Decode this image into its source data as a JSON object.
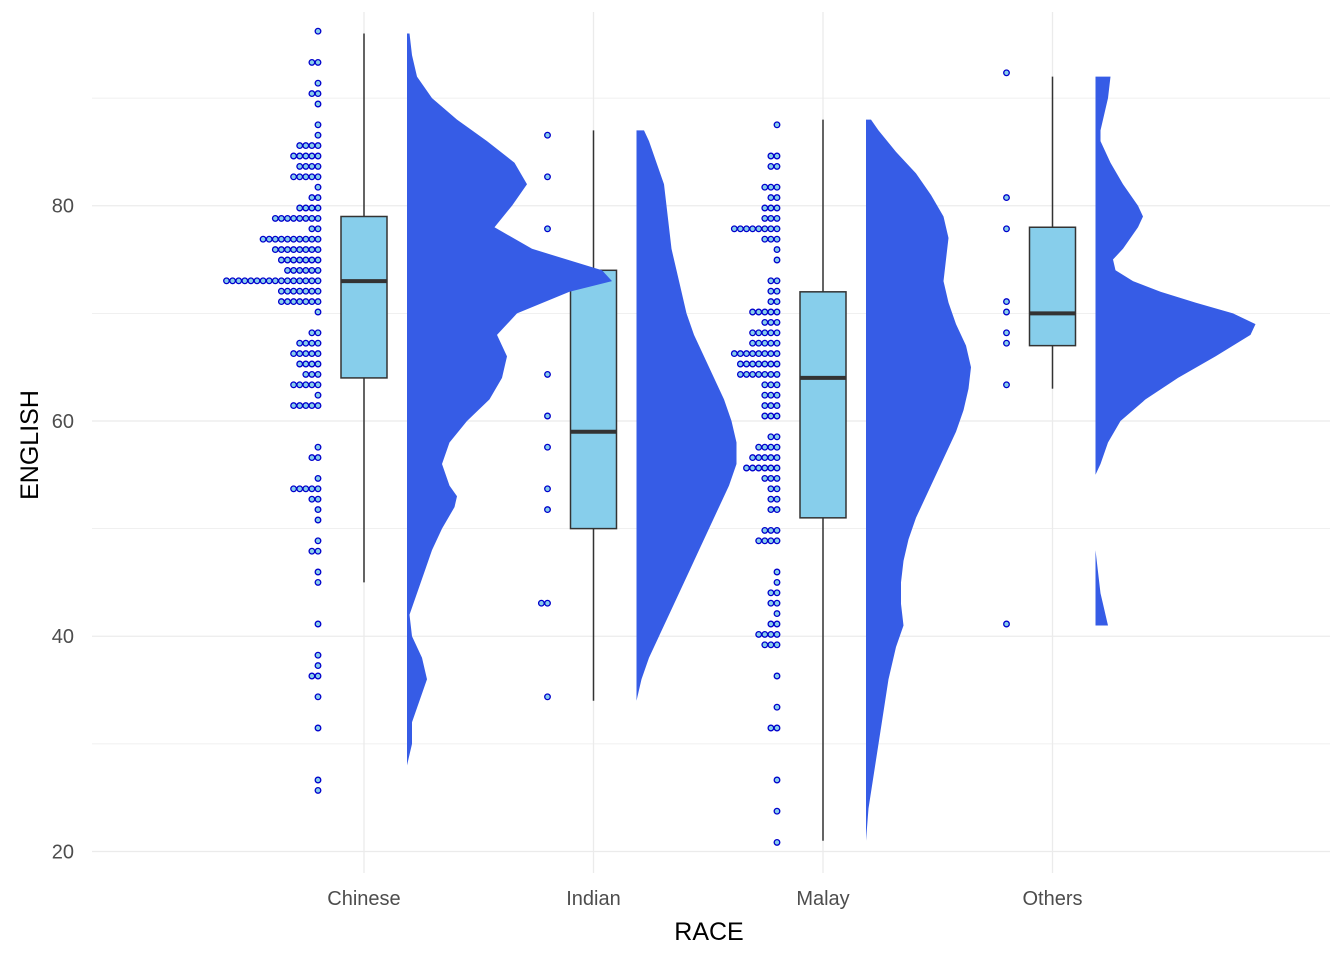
{
  "chart_data": {
    "type": "raincloud",
    "xlabel": "RACE",
    "ylabel": "ENGLISH",
    "ylim": [
      18,
      98
    ],
    "yticks": [
      20,
      40,
      60,
      80
    ],
    "grid": true,
    "colors": {
      "box_fill": "#87CEEB",
      "box_stroke": "#333333",
      "density_fill": "#365CE6",
      "dot_stroke": "#0000CC",
      "dot_fill": "#87CEEB",
      "grid": "#EBEBEB"
    },
    "categories": [
      {
        "name": "Chinese",
        "box": {
          "min": 45,
          "q1": 64,
          "median": 73,
          "q3": 79,
          "max": 96
        },
        "density_range": [
          26,
          96
        ],
        "density": [
          [
            26,
            0.0
          ],
          [
            28,
            0.0
          ],
          [
            30,
            0.02
          ],
          [
            32,
            0.02
          ],
          [
            34,
            0.05
          ],
          [
            36,
            0.08
          ],
          [
            38,
            0.06
          ],
          [
            40,
            0.02
          ],
          [
            42,
            0.01
          ],
          [
            44,
            0.04
          ],
          [
            46,
            0.07
          ],
          [
            48,
            0.1
          ],
          [
            50,
            0.14
          ],
          [
            52,
            0.19
          ],
          [
            53,
            0.2
          ],
          [
            54,
            0.17
          ],
          [
            56,
            0.14
          ],
          [
            58,
            0.17
          ],
          [
            60,
            0.24
          ],
          [
            62,
            0.33
          ],
          [
            64,
            0.38
          ],
          [
            66,
            0.4
          ],
          [
            68,
            0.36
          ],
          [
            70,
            0.44
          ],
          [
            72,
            0.65
          ],
          [
            73,
            0.82
          ],
          [
            74,
            0.78
          ],
          [
            76,
            0.5
          ],
          [
            78,
            0.35
          ],
          [
            80,
            0.42
          ],
          [
            82,
            0.48
          ],
          [
            84,
            0.43
          ],
          [
            86,
            0.32
          ],
          [
            88,
            0.2
          ],
          [
            90,
            0.1
          ],
          [
            92,
            0.04
          ],
          [
            94,
            0.02
          ],
          [
            96,
            0.01
          ]
        ],
        "dots": [
          96,
          93,
          93,
          91,
          90,
          90,
          89,
          88,
          87,
          86,
          86,
          86,
          86,
          85,
          85,
          85,
          85,
          85,
          84,
          84,
          84,
          84,
          83,
          83,
          83,
          83,
          83,
          82,
          81,
          81,
          80,
          80,
          80,
          80,
          79,
          79,
          79,
          79,
          79,
          79,
          79,
          79,
          78,
          78,
          77,
          77,
          77,
          77,
          77,
          77,
          77,
          77,
          77,
          77,
          76,
          76,
          76,
          76,
          76,
          76,
          76,
          76,
          75,
          75,
          75,
          75,
          75,
          75,
          75,
          74,
          74,
          74,
          74,
          74,
          74,
          73,
          73,
          73,
          73,
          73,
          73,
          73,
          73,
          73,
          73,
          73,
          73,
          73,
          73,
          73,
          73,
          72,
          72,
          72,
          72,
          72,
          72,
          72,
          71,
          71,
          71,
          71,
          71,
          71,
          71,
          70,
          68,
          68,
          67,
          67,
          67,
          67,
          66,
          66,
          66,
          66,
          66,
          65,
          65,
          65,
          65,
          64,
          64,
          64,
          63,
          63,
          63,
          63,
          63,
          62,
          61,
          61,
          61,
          61,
          61,
          58,
          57,
          57,
          55,
          54,
          54,
          54,
          54,
          54,
          53,
          53,
          52,
          51,
          49,
          48,
          48,
          46,
          45,
          41,
          38,
          37,
          36,
          36,
          34,
          31,
          27,
          26
        ]
      },
      {
        "name": "Indian",
        "box": {
          "min": 34,
          "q1": 50,
          "median": 59,
          "q3": 74,
          "max": 87
        },
        "density_range": [
          34,
          87
        ],
        "density": [
          [
            34,
            0.0
          ],
          [
            36,
            0.02
          ],
          [
            38,
            0.05
          ],
          [
            40,
            0.09
          ],
          [
            42,
            0.13
          ],
          [
            44,
            0.17
          ],
          [
            46,
            0.21
          ],
          [
            48,
            0.25
          ],
          [
            50,
            0.29
          ],
          [
            52,
            0.33
          ],
          [
            54,
            0.37
          ],
          [
            56,
            0.4
          ],
          [
            58,
            0.4
          ],
          [
            60,
            0.38
          ],
          [
            62,
            0.35
          ],
          [
            64,
            0.31
          ],
          [
            66,
            0.27
          ],
          [
            68,
            0.23
          ],
          [
            70,
            0.2
          ],
          [
            72,
            0.18
          ],
          [
            74,
            0.16
          ],
          [
            76,
            0.14
          ],
          [
            78,
            0.13
          ],
          [
            80,
            0.12
          ],
          [
            82,
            0.11
          ],
          [
            84,
            0.08
          ],
          [
            86,
            0.05
          ],
          [
            87,
            0.03
          ]
        ],
        "dots": [
          87,
          83,
          78,
          73,
          64,
          60,
          58,
          54,
          52,
          43,
          43,
          34
        ]
      },
      {
        "name": "Malay",
        "box": {
          "min": 21,
          "q1": 51,
          "median": 64,
          "q3": 72,
          "max": 88
        },
        "density_range": [
          21,
          88
        ],
        "density": [
          [
            21,
            0.0
          ],
          [
            24,
            0.01
          ],
          [
            27,
            0.03
          ],
          [
            30,
            0.05
          ],
          [
            33,
            0.07
          ],
          [
            36,
            0.09
          ],
          [
            39,
            0.12
          ],
          [
            41,
            0.15
          ],
          [
            43,
            0.14
          ],
          [
            45,
            0.14
          ],
          [
            47,
            0.15
          ],
          [
            49,
            0.17
          ],
          [
            51,
            0.2
          ],
          [
            53,
            0.24
          ],
          [
            55,
            0.28
          ],
          [
            57,
            0.32
          ],
          [
            59,
            0.36
          ],
          [
            61,
            0.39
          ],
          [
            63,
            0.41
          ],
          [
            65,
            0.42
          ],
          [
            67,
            0.4
          ],
          [
            69,
            0.36
          ],
          [
            71,
            0.33
          ],
          [
            73,
            0.31
          ],
          [
            75,
            0.32
          ],
          [
            77,
            0.33
          ],
          [
            79,
            0.31
          ],
          [
            81,
            0.26
          ],
          [
            83,
            0.2
          ],
          [
            85,
            0.12
          ],
          [
            87,
            0.05
          ],
          [
            88,
            0.02
          ]
        ],
        "dots": [
          88,
          85,
          85,
          84,
          84,
          82,
          82,
          82,
          81,
          81,
          80,
          80,
          80,
          79,
          79,
          79,
          78,
          78,
          78,
          78,
          78,
          78,
          78,
          78,
          77,
          77,
          77,
          76,
          75,
          73,
          73,
          72,
          72,
          71,
          71,
          70,
          70,
          70,
          70,
          70,
          69,
          69,
          69,
          68,
          68,
          68,
          68,
          68,
          67,
          67,
          67,
          67,
          67,
          66,
          66,
          66,
          66,
          66,
          66,
          66,
          66,
          65,
          65,
          65,
          65,
          65,
          65,
          65,
          64,
          64,
          64,
          64,
          64,
          64,
          64,
          63,
          63,
          63,
          62,
          62,
          62,
          61,
          61,
          61,
          60,
          60,
          60,
          59,
          59,
          58,
          58,
          58,
          58,
          57,
          57,
          57,
          57,
          57,
          56,
          56,
          56,
          56,
          56,
          56,
          55,
          55,
          55,
          54,
          54,
          53,
          53,
          52,
          52,
          50,
          50,
          50,
          49,
          49,
          49,
          49,
          46,
          45,
          44,
          44,
          43,
          43,
          42,
          41,
          41,
          40,
          40,
          40,
          40,
          39,
          39,
          39,
          36,
          33,
          31,
          31,
          27,
          24,
          21
        ]
      },
      {
        "name": "Others",
        "box": {
          "min": 63,
          "q1": 67,
          "median": 70,
          "q3": 78,
          "max": 92
        },
        "density_range": [
          41,
          92
        ],
        "density": [
          [
            41,
            0.05
          ],
          [
            42,
            0.04
          ],
          [
            43,
            0.03
          ],
          [
            44,
            0.02
          ],
          [
            46,
            0.01
          ],
          [
            48,
            0.0
          ],
          [
            50,
            0.0
          ],
          [
            53,
            0.0
          ],
          [
            55,
            0.0
          ],
          [
            56,
            0.02
          ],
          [
            58,
            0.05
          ],
          [
            60,
            0.1
          ],
          [
            62,
            0.2
          ],
          [
            64,
            0.33
          ],
          [
            66,
            0.48
          ],
          [
            68,
            0.62
          ],
          [
            69,
            0.64
          ],
          [
            70,
            0.55
          ],
          [
            71,
            0.4
          ],
          [
            72,
            0.26
          ],
          [
            73,
            0.15
          ],
          [
            74,
            0.08
          ],
          [
            75,
            0.07
          ],
          [
            76,
            0.11
          ],
          [
            78,
            0.17
          ],
          [
            79,
            0.19
          ],
          [
            80,
            0.17
          ],
          [
            82,
            0.11
          ],
          [
            84,
            0.06
          ],
          [
            86,
            0.02
          ],
          [
            87,
            0.02
          ],
          [
            88,
            0.03
          ],
          [
            90,
            0.05
          ],
          [
            92,
            0.06
          ]
        ],
        "dots": [
          92,
          81,
          78,
          71,
          70,
          68,
          67,
          63,
          41
        ]
      }
    ]
  }
}
